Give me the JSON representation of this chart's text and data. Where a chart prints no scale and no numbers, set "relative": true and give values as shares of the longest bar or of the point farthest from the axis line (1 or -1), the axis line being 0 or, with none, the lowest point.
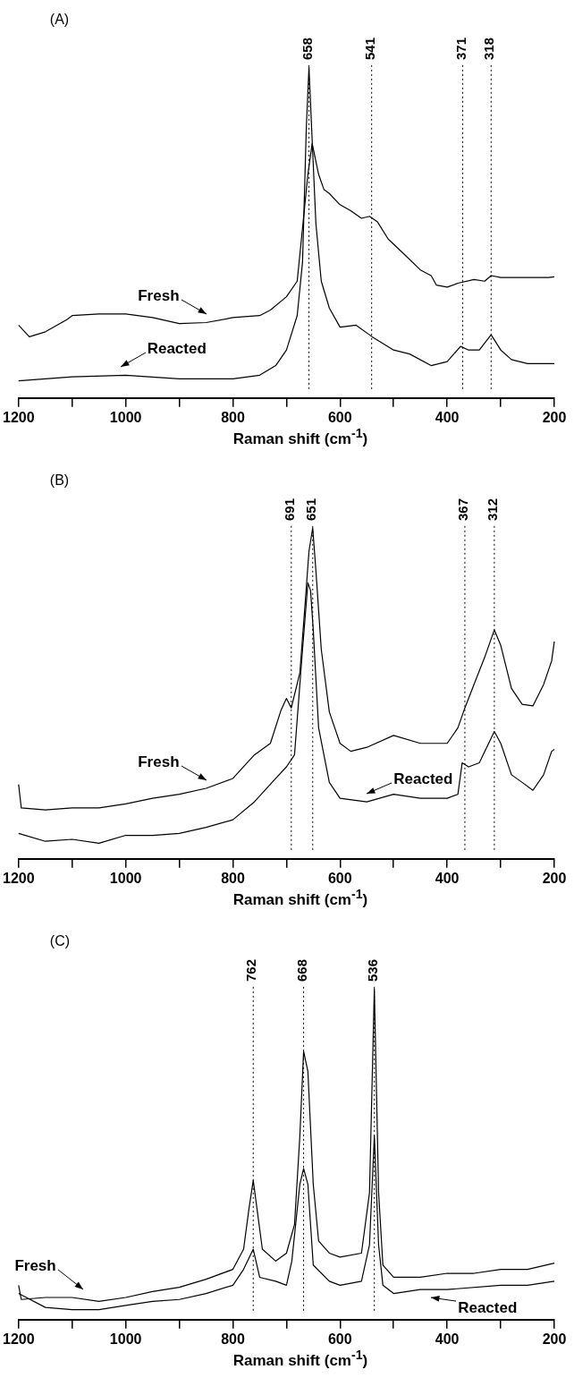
{
  "chart_data": [
    {
      "type": "line",
      "relative": true,
      "xlabel": "Raman shift (cm$^{-1}$)",
      "annotations": [
        "(A)"
      ],
      "xlim": [
        1200,
        200
      ],
      "xticks": [
        1200,
        {
          "value": 1100,
          "label": null
        },
        1000,
        {
          "value": 900,
          "label": null
        },
        800,
        {
          "value": 700,
          "label": null
        },
        600,
        {
          "value": 500,
          "label": null
        },
        400,
        {
          "value": 300,
          "label": null
        },
        200
      ],
      "ref_lines": [
        {
          "axis": "x",
          "value": 658,
          "label": "658",
          "color": "#000000",
          "line_style": "dotted"
        },
        {
          "axis": "x",
          "value": 541,
          "label": "541",
          "color": "#000000",
          "line_style": "dotted"
        },
        {
          "axis": "x",
          "value": 371,
          "label": "371",
          "color": "#000000",
          "line_style": "dotted"
        },
        {
          "axis": "x",
          "value": 318,
          "label": "318",
          "color": "#000000",
          "line_style": "dotted"
        }
      ],
      "series": [
        {
          "name": "Fresh",
          "color": "#000000",
          "x": [
            1200,
            1180,
            1150,
            1110,
            1100,
            1050,
            1000,
            950,
            900,
            850,
            800,
            750,
            730,
            700,
            680,
            670,
            660,
            652,
            640,
            630,
            620,
            600,
            580,
            560,
            545,
            530,
            510,
            480,
            450,
            430,
            420,
            400,
            380,
            350,
            330,
            318,
            300,
            250,
            210,
            200
          ],
          "values": [
            0.22,
            0.185,
            0.2,
            0.237,
            0.249,
            0.254,
            0.254,
            0.243,
            0.225,
            0.228,
            0.243,
            0.249,
            0.266,
            0.306,
            0.353,
            0.514,
            0.676,
            0.769,
            0.676,
            0.63,
            0.618,
            0.584,
            0.566,
            0.543,
            0.549,
            0.532,
            0.48,
            0.434,
            0.387,
            0.37,
            0.341,
            0.335,
            0.347,
            0.358,
            0.353,
            0.37,
            0.364,
            0.364,
            0.364,
            0.366
          ]
        },
        {
          "name": "Reacted",
          "color": "#000000",
          "x": [
            1200,
            1100,
            1000,
            900,
            800,
            750,
            720,
            700,
            680,
            670,
            663,
            658,
            653,
            645,
            635,
            620,
            600,
            570,
            540,
            500,
            470,
            430,
            400,
            375,
            360,
            340,
            318,
            300,
            280,
            250,
            200
          ],
          "values": [
            0.052,
            0.064,
            0.069,
            0.058,
            0.058,
            0.069,
            0.098,
            0.145,
            0.249,
            0.41,
            0.815,
            1,
            0.815,
            0.526,
            0.353,
            0.272,
            0.214,
            0.22,
            0.185,
            0.145,
            0.133,
            0.098,
            0.11,
            0.156,
            0.145,
            0.145,
            0.191,
            0.145,
            0.116,
            0.104,
            0.104
          ]
        }
      ]
    },
    {
      "type": "line",
      "relative": true,
      "xlabel": "Raman shift (cm$^{-1}$)",
      "annotations": [
        "(B)"
      ],
      "xlim": [
        1200,
        200
      ],
      "xticks": [
        1200,
        {
          "value": 1100,
          "label": null
        },
        1000,
        {
          "value": 900,
          "label": null
        },
        800,
        {
          "value": 700,
          "label": null
        },
        600,
        {
          "value": 500,
          "label": null
        },
        400,
        {
          "value": 300,
          "label": null
        },
        200
      ],
      "ref_lines": [
        {
          "axis": "x",
          "value": 691,
          "label": "691",
          "color": "#000000",
          "line_style": "dotted"
        },
        {
          "axis": "x",
          "value": 651,
          "label": "651",
          "color": "#000000",
          "line_style": "dotted"
        },
        {
          "axis": "x",
          "value": 367,
          "label": "367",
          "color": "#000000",
          "line_style": "dotted"
        },
        {
          "axis": "x",
          "value": 312,
          "label": "312",
          "color": "#000000",
          "line_style": "dotted"
        }
      ],
      "series": [
        {
          "name": "Fresh",
          "color": "#000000",
          "x": [
            1200,
            1195,
            1150,
            1100,
            1050,
            1000,
            950,
            900,
            850,
            800,
            760,
            730,
            710,
            700,
            691,
            675,
            665,
            658,
            651,
            645,
            635,
            620,
            600,
            580,
            550,
            500,
            450,
            400,
            380,
            367,
            350,
            330,
            312,
            300,
            280,
            260,
            240,
            220,
            205,
            200
          ],
          "values": [
            0.225,
            0.154,
            0.148,
            0.154,
            0.154,
            0.166,
            0.183,
            0.195,
            0.213,
            0.243,
            0.314,
            0.349,
            0.45,
            0.485,
            0.456,
            0.562,
            0.775,
            0.929,
            1,
            0.87,
            0.633,
            0.444,
            0.349,
            0.325,
            0.337,
            0.373,
            0.349,
            0.349,
            0.396,
            0.456,
            0.527,
            0.609,
            0.692,
            0.645,
            0.515,
            0.467,
            0.462,
            0.527,
            0.598,
            0.657
          ]
        },
        {
          "name": "Reacted",
          "color": "#000000",
          "x": [
            1200,
            1150,
            1100,
            1050,
            1000,
            950,
            900,
            850,
            800,
            760,
            720,
            700,
            685,
            670,
            660,
            655,
            650,
            640,
            620,
            600,
            550,
            500,
            450,
            400,
            380,
            372,
            360,
            340,
            312,
            300,
            280,
            260,
            240,
            220,
            205,
            200
          ],
          "values": [
            0.077,
            0.053,
            0.059,
            0.047,
            0.071,
            0.071,
            0.077,
            0.095,
            0.118,
            0.172,
            0.243,
            0.278,
            0.314,
            0.633,
            0.834,
            0.811,
            0.692,
            0.396,
            0.231,
            0.183,
            0.172,
            0.195,
            0.183,
            0.183,
            0.195,
            0.29,
            0.278,
            0.29,
            0.385,
            0.349,
            0.254,
            0.231,
            0.207,
            0.254,
            0.325,
            0.331
          ]
        }
      ]
    },
    {
      "type": "line",
      "relative": true,
      "xlabel": "Raman shift (cm$^{-1}$)",
      "annotations": [
        "(C)"
      ],
      "xlim": [
        1200,
        200
      ],
      "xticks": [
        1200,
        {
          "value": 1100,
          "label": null
        },
        1000,
        {
          "value": 900,
          "label": null
        },
        800,
        {
          "value": 700,
          "label": null
        },
        600,
        {
          "value": 500,
          "label": null
        },
        400,
        {
          "value": 300,
          "label": null
        },
        200
      ],
      "ref_lines": [
        {
          "axis": "x",
          "value": 762,
          "label": "762",
          "color": "#000000",
          "line_style": "dotted"
        },
        {
          "axis": "x",
          "value": 668,
          "label": "668",
          "color": "#000000",
          "line_style": "dotted"
        },
        {
          "axis": "x",
          "value": 536,
          "label": "536",
          "color": "#000000",
          "line_style": "dotted"
        }
      ],
      "series": [
        {
          "name": "Fresh",
          "color": "#000000",
          "x": [
            1200,
            1195,
            1150,
            1100,
            1050,
            1000,
            950,
            900,
            850,
            800,
            780,
            770,
            762,
            755,
            745,
            720,
            700,
            685,
            675,
            668,
            660,
            650,
            640,
            620,
            600,
            560,
            545,
            536,
            528,
            520,
            500,
            450,
            400,
            350,
            300,
            250,
            200
          ],
          "values": [
            0.104,
            0.061,
            0.067,
            0.067,
            0.055,
            0.067,
            0.085,
            0.098,
            0.122,
            0.152,
            0.213,
            0.335,
            0.421,
            0.335,
            0.213,
            0.177,
            0.201,
            0.287,
            0.555,
            0.811,
            0.75,
            0.409,
            0.238,
            0.201,
            0.189,
            0.201,
            0.384,
            1,
            0.384,
            0.165,
            0.128,
            0.128,
            0.14,
            0.14,
            0.152,
            0.152,
            0.171
          ]
        },
        {
          "name": "Reacted",
          "color": "#000000",
          "x": [
            1200,
            1150,
            1100,
            1050,
            1000,
            950,
            900,
            850,
            800,
            780,
            762,
            750,
            720,
            700,
            690,
            675,
            668,
            660,
            650,
            620,
            600,
            560,
            545,
            536,
            528,
            520,
            500,
            450,
            400,
            300,
            250,
            200
          ],
          "values": [
            0.079,
            0.037,
            0.03,
            0.03,
            0.043,
            0.055,
            0.061,
            0.079,
            0.104,
            0.152,
            0.213,
            0.128,
            0.116,
            0.104,
            0.177,
            0.409,
            0.457,
            0.409,
            0.165,
            0.116,
            0.104,
            0.116,
            0.226,
            0.555,
            0.226,
            0.104,
            0.079,
            0.091,
            0.091,
            0.104,
            0.104,
            0.116
          ]
        }
      ]
    }
  ]
}
